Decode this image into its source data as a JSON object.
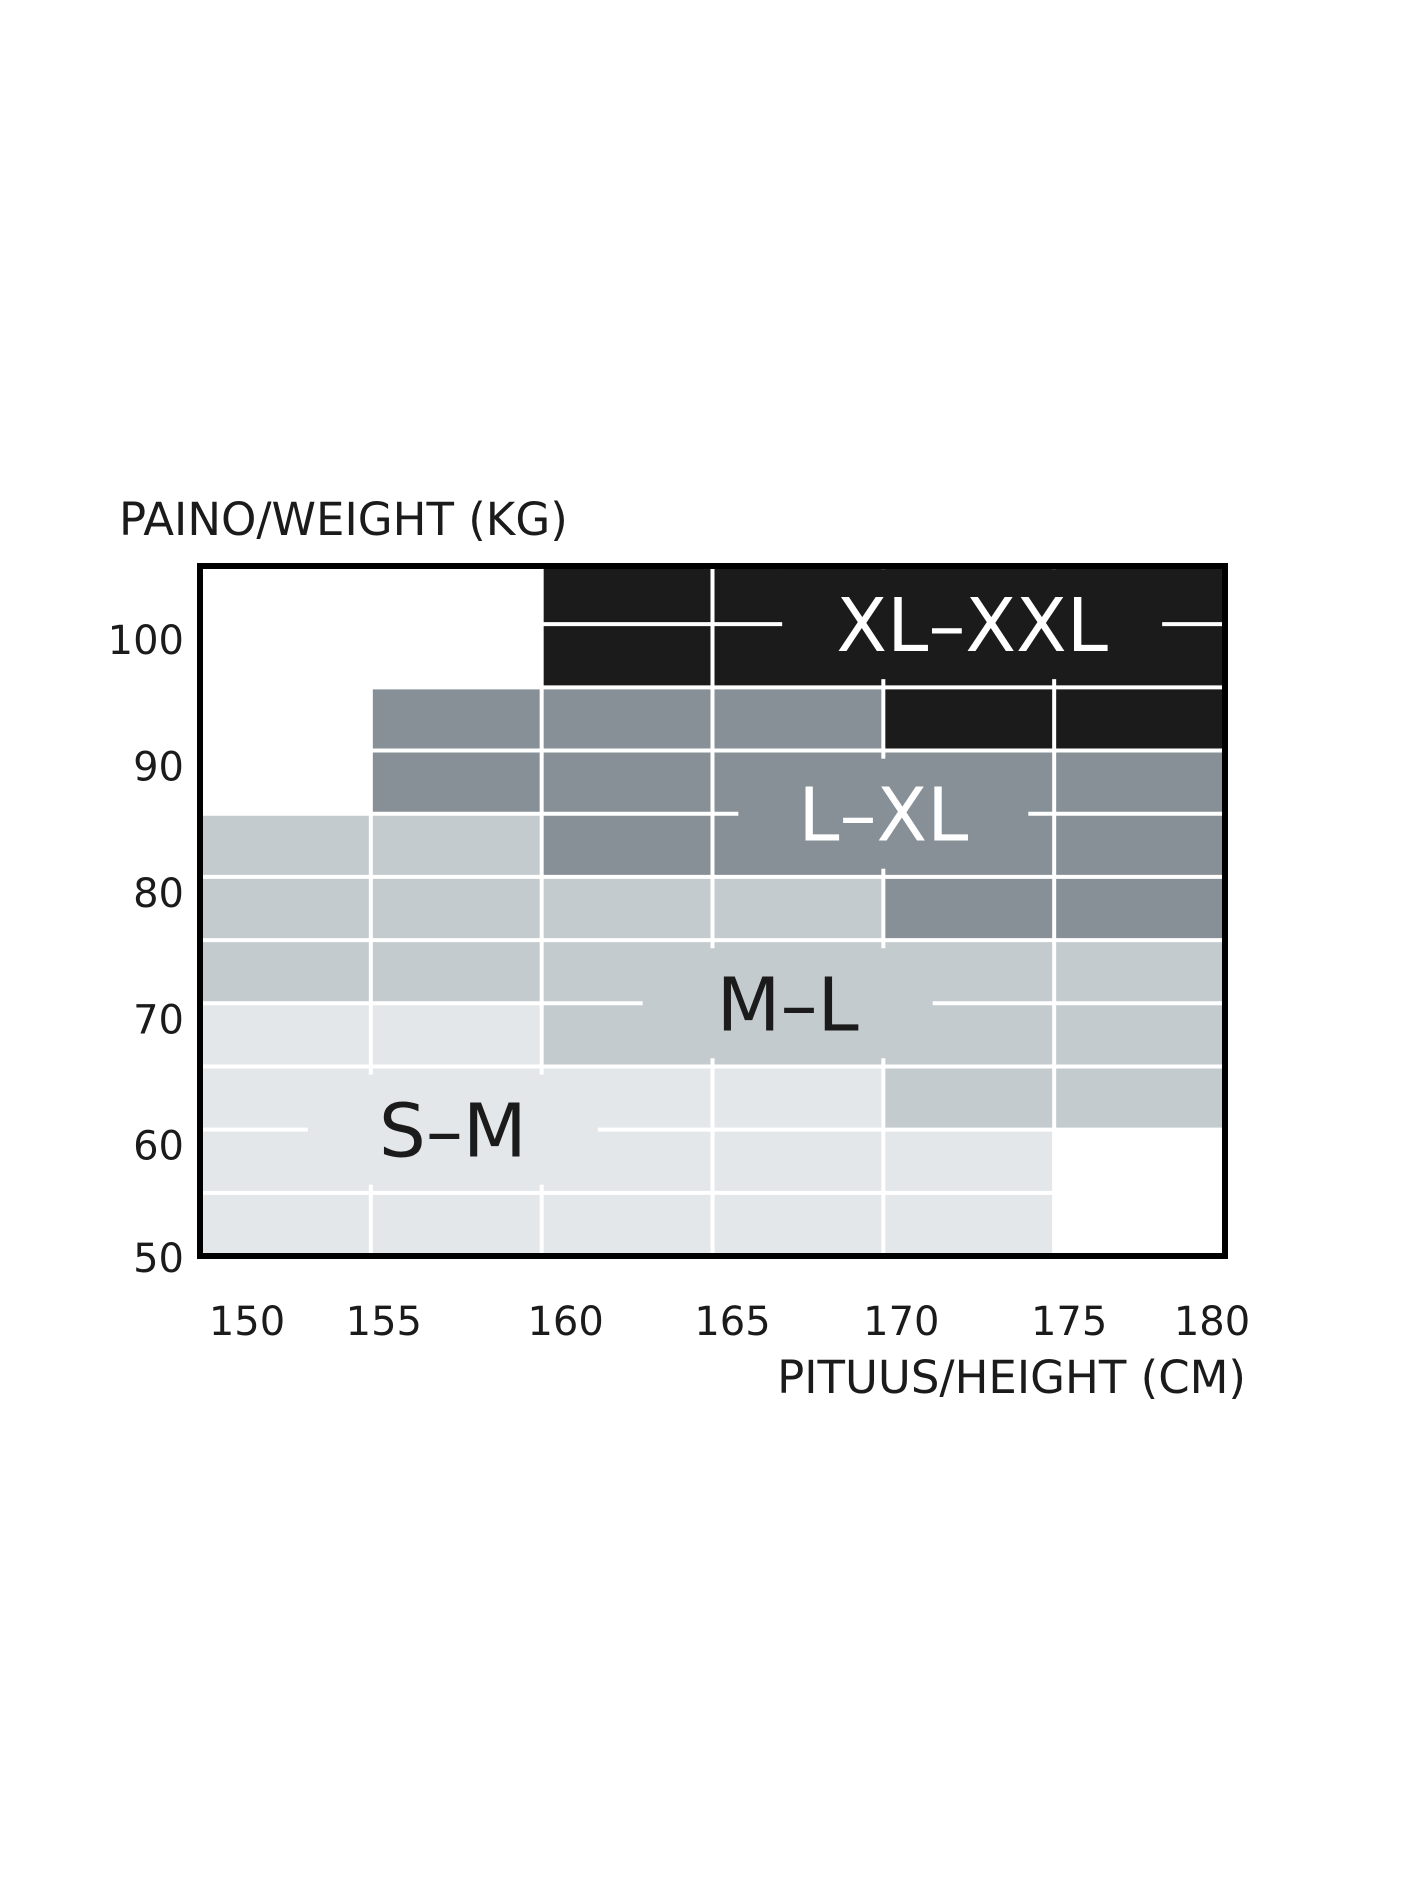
{
  "chart_data": {
    "type": "heatmap",
    "title": "",
    "xlabel": "PITUUS/HEIGHT (CM)",
    "ylabel": "PAINO/WEIGHT (KG)",
    "xlim": [
      150,
      180
    ],
    "ylim": [
      50,
      104.6
    ],
    "x_ticks": [
      "150",
      "155",
      "160",
      "165",
      "170",
      "175",
      "180"
    ],
    "y_ticks": [
      "100",
      "90",
      "80",
      "70",
      "60",
      "50"
    ],
    "grid": true,
    "colors": {
      "S–M": "#e3e7e9",
      "M–L": "#c3cbce",
      "L–XL": "#879097",
      "XL–XXL": "#1b1b1b",
      "gridline": "#ffffff",
      "border": "#000000"
    },
    "series": [
      {
        "name": "S–M",
        "label_at": [
          157.4,
          60
        ],
        "label_color": "#1b1b1b",
        "cells": [
          {
            "height_range": [
              150,
              155
            ],
            "weight_range": [
              50,
              70
            ]
          },
          {
            "height_range": [
              155,
              160
            ],
            "weight_range": [
              50,
              70
            ]
          },
          {
            "height_range": [
              160,
              165
            ],
            "weight_range": [
              50,
              65
            ]
          },
          {
            "height_range": [
              165,
              170
            ],
            "weight_range": [
              50,
              65
            ]
          },
          {
            "height_range": [
              170,
              175
            ],
            "weight_range": [
              50,
              60
            ]
          }
        ]
      },
      {
        "name": "M–L",
        "label_at": [
          167.2,
          70
        ],
        "label_color": "#1b1b1b",
        "cells": [
          {
            "height_range": [
              150,
              155
            ],
            "weight_range": [
              70,
              85
            ]
          },
          {
            "height_range": [
              155,
              160
            ],
            "weight_range": [
              70,
              85
            ]
          },
          {
            "height_range": [
              160,
              165
            ],
            "weight_range": [
              65,
              80
            ]
          },
          {
            "height_range": [
              165,
              170
            ],
            "weight_range": [
              65,
              80
            ]
          },
          {
            "height_range": [
              170,
              175
            ],
            "weight_range": [
              60,
              75
            ]
          },
          {
            "height_range": [
              175,
              180
            ],
            "weight_range": [
              60,
              75
            ]
          }
        ]
      },
      {
        "name": "L–XL",
        "label_at": [
          170,
          85
        ],
        "label_color": "#ffffff",
        "cells": [
          {
            "height_range": [
              155,
              160
            ],
            "weight_range": [
              85,
              95
            ]
          },
          {
            "height_range": [
              160,
              165
            ],
            "weight_range": [
              80,
              95
            ]
          },
          {
            "height_range": [
              165,
              170
            ],
            "weight_range": [
              80,
              95
            ]
          },
          {
            "height_range": [
              170,
              175
            ],
            "weight_range": [
              75,
              90
            ]
          },
          {
            "height_range": [
              175,
              180
            ],
            "weight_range": [
              75,
              90
            ]
          }
        ]
      },
      {
        "name": "XL–XXL",
        "label_at": [
          172.6,
          100
        ],
        "label_color": "#ffffff",
        "cells": [
          {
            "height_range": [
              160,
              165
            ],
            "weight_range": [
              95,
              104.6
            ]
          },
          {
            "height_range": [
              165,
              170
            ],
            "weight_range": [
              95,
              104.6
            ]
          },
          {
            "height_range": [
              170,
              175
            ],
            "weight_range": [
              90,
              104.6
            ]
          },
          {
            "height_range": [
              175,
              180
            ],
            "weight_range": [
              90,
              104.6
            ]
          }
        ]
      }
    ]
  }
}
